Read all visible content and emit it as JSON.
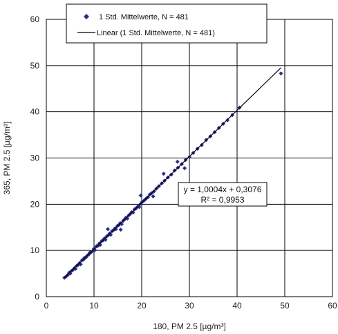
{
  "chart_data": {
    "type": "scatter",
    "title": "",
    "xlabel": "180,  PM 2.5 [µg/m³]",
    "ylabel": "365, PM 2.5 [µg/m³]",
    "xlim": [
      0,
      60
    ],
    "ylim": [
      0,
      60
    ],
    "xticks": [
      0,
      10,
      20,
      30,
      40,
      50,
      60
    ],
    "yticks": [
      0,
      10,
      20,
      30,
      40,
      50,
      60
    ],
    "grid": true,
    "legend_position": "top",
    "series": [
      {
        "name": "1 Std. Mittelwerte, N = 481",
        "kind": "scatter",
        "color": "#2b2b8f",
        "marker": "diamond",
        "points": [
          [
            3.8,
            4.1
          ],
          [
            4.2,
            4.4
          ],
          [
            4.5,
            4.7
          ],
          [
            4.8,
            5.2
          ],
          [
            5.0,
            5.0
          ],
          [
            5.3,
            5.6
          ],
          [
            5.6,
            5.8
          ],
          [
            5.9,
            6.2
          ],
          [
            6.1,
            6.0
          ],
          [
            6.4,
            6.7
          ],
          [
            6.7,
            6.9
          ],
          [
            7.0,
            7.3
          ],
          [
            7.2,
            7.0
          ],
          [
            7.5,
            7.9
          ],
          [
            7.8,
            8.0
          ],
          [
            8.0,
            8.4
          ],
          [
            8.3,
            8.5
          ],
          [
            8.6,
            8.9
          ],
          [
            8.9,
            9.1
          ],
          [
            9.1,
            9.5
          ],
          [
            9.4,
            9.6
          ],
          [
            9.7,
            9.9
          ],
          [
            10.0,
            10.4
          ],
          [
            10.2,
            10.1
          ],
          [
            10.5,
            10.9
          ],
          [
            10.8,
            11.0
          ],
          [
            11.1,
            11.5
          ],
          [
            11.3,
            11.2
          ],
          [
            11.6,
            12.0
          ],
          [
            11.9,
            12.2
          ],
          [
            12.2,
            12.6
          ],
          [
            12.4,
            12.3
          ],
          [
            12.7,
            13.1
          ],
          [
            13.0,
            13.3
          ],
          [
            13.3,
            13.7
          ],
          [
            13.5,
            13.4
          ],
          [
            13.8,
            14.2
          ],
          [
            14.1,
            14.4
          ],
          [
            14.4,
            14.8
          ],
          [
            14.6,
            14.6
          ],
          [
            14.9,
            15.3
          ],
          [
            15.2,
            15.5
          ],
          [
            15.5,
            15.9
          ],
          [
            15.8,
            15.7
          ],
          [
            16.1,
            16.4
          ],
          [
            16.4,
            16.7
          ],
          [
            16.7,
            17.1
          ],
          [
            17.0,
            16.9
          ],
          [
            17.3,
            17.6
          ],
          [
            17.6,
            17.9
          ],
          [
            17.9,
            18.3
          ],
          [
            18.2,
            18.2
          ],
          [
            18.5,
            18.9
          ],
          [
            18.8,
            19.1
          ],
          [
            19.2,
            19.5
          ],
          [
            19.5,
            19.4
          ],
          [
            19.8,
            20.1
          ],
          [
            20.1,
            20.5
          ],
          [
            20.5,
            20.8
          ],
          [
            20.9,
            21.2
          ],
          [
            21.3,
            21.5
          ],
          [
            21.7,
            22.1
          ],
          [
            22.1,
            22.4
          ],
          [
            22.6,
            22.8
          ],
          [
            23.1,
            23.4
          ],
          [
            23.6,
            23.9
          ],
          [
            24.2,
            24.5
          ],
          [
            24.8,
            25.1
          ],
          [
            25.5,
            25.8
          ],
          [
            26.2,
            26.4
          ],
          [
            26.9,
            27.3
          ],
          [
            27.6,
            27.9
          ],
          [
            28.4,
            28.7
          ],
          [
            29.2,
            29.6
          ],
          [
            30.0,
            30.2
          ],
          [
            30.8,
            31.1
          ],
          [
            31.7,
            32.0
          ],
          [
            32.6,
            32.8
          ],
          [
            33.5,
            33.9
          ],
          [
            34.4,
            34.7
          ],
          [
            35.3,
            35.6
          ],
          [
            36.2,
            36.5
          ],
          [
            37.1,
            37.4
          ],
          [
            38.0,
            38.2
          ],
          [
            39.0,
            39.3
          ],
          [
            40.5,
            40.9
          ],
          [
            24.6,
            26.6
          ],
          [
            29.0,
            27.8
          ],
          [
            19.8,
            21.9
          ],
          [
            27.5,
            29.2
          ],
          [
            49.2,
            48.3
          ],
          [
            12.9,
            14.6
          ],
          [
            15.6,
            14.5
          ],
          [
            22.4,
            21.7
          ]
        ]
      },
      {
        "name": "Linear (1 Std. Mittelwerte, N = 481)",
        "kind": "line",
        "color": "#000000",
        "slope": 1.0004,
        "intercept": 0.3076,
        "x_range": [
          3.8,
          49.2
        ]
      }
    ],
    "annotations": {
      "equation": "y = 1,0004x + 0,3076",
      "r_squared": "R² = 0,9953"
    }
  }
}
